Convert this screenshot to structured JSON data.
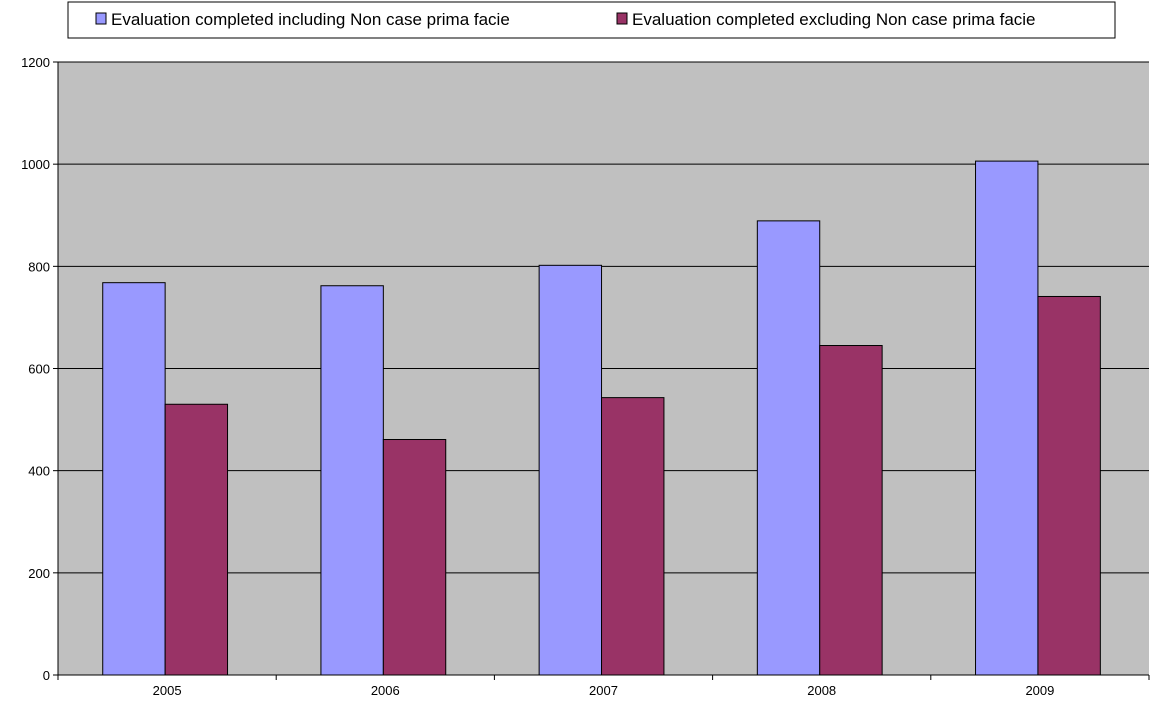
{
  "chart_data": {
    "type": "bar",
    "categories": [
      "2005",
      "2006",
      "2007",
      "2008",
      "2009"
    ],
    "series": [
      {
        "name": "Evaluation completed including Non case prima facie",
        "values": [
          768,
          762,
          802,
          889,
          1006
        ],
        "color": "#9999ff"
      },
      {
        "name": "Evaluation completed excluding Non case prima facie",
        "values": [
          530,
          461,
          543,
          645,
          741
        ],
        "color": "#993366"
      }
    ],
    "ylim": [
      0,
      1200
    ],
    "yticks": [
      0,
      200,
      400,
      600,
      800,
      1000,
      1200
    ],
    "grid": true,
    "plot_background": "#c0c0c0",
    "legend_position": "top"
  }
}
